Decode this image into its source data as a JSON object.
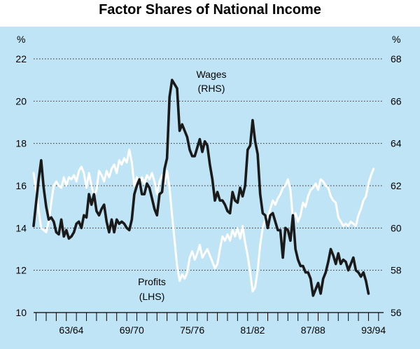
{
  "chart_data": {
    "type": "line",
    "title": "Factor Shares of National Income",
    "left_axis": {
      "unit": "%",
      "min": 10,
      "max": 22,
      "ticks": [
        10,
        12,
        14,
        16,
        18,
        20,
        22
      ]
    },
    "right_axis": {
      "unit": "%",
      "min": 56,
      "max": 68,
      "ticks": [
        56,
        58,
        60,
        62,
        64,
        66,
        68
      ]
    },
    "x_labels": [
      "63/64",
      "69/70",
      "75/76",
      "81/82",
      "87/88",
      "93/94"
    ],
    "x_range": [
      1959.75,
      1994.5
    ],
    "grid": "horizontal-dotted",
    "annotations": [
      {
        "text": "Wages",
        "series": "Wages (RHS)"
      },
      {
        "text": "(RHS)",
        "series": "Wages (RHS)"
      },
      {
        "text": "Profits",
        "series": "Profits (LHS)"
      },
      {
        "text": "(LHS)",
        "series": "Profits (LHS)"
      }
    ],
    "series": [
      {
        "axis": "left",
        "color": "#ffffff",
        "values": [
          [
            1959.75,
            16.6
          ],
          [
            1960.0,
            15.8
          ],
          [
            1960.25,
            14.8
          ],
          [
            1960.5,
            14.0
          ],
          [
            1960.75,
            13.9
          ],
          [
            1961.0,
            13.8
          ],
          [
            1961.25,
            14.3
          ],
          [
            1961.5,
            15.2
          ],
          [
            1961.75,
            16.0
          ],
          [
            1962.0,
            16.2
          ],
          [
            1962.25,
            16.0
          ],
          [
            1962.5,
            15.9
          ],
          [
            1962.75,
            16.4
          ],
          [
            1963.0,
            16.0
          ],
          [
            1963.25,
            16.4
          ],
          [
            1963.5,
            16.3
          ],
          [
            1963.75,
            16.5
          ],
          [
            1964.0,
            16.2
          ],
          [
            1964.25,
            16.7
          ],
          [
            1964.5,
            16.9
          ],
          [
            1964.75,
            16.6
          ],
          [
            1965.0,
            15.9
          ],
          [
            1965.25,
            16.6
          ],
          [
            1965.5,
            16.0
          ],
          [
            1965.75,
            15.5
          ],
          [
            1966.0,
            15.8
          ],
          [
            1966.25,
            16.7
          ],
          [
            1966.5,
            16.5
          ],
          [
            1966.75,
            16.2
          ],
          [
            1967.0,
            16.7
          ],
          [
            1967.25,
            16.4
          ],
          [
            1967.5,
            16.8
          ],
          [
            1967.75,
            17.0
          ],
          [
            1968.0,
            16.6
          ],
          [
            1968.25,
            17.2
          ],
          [
            1968.5,
            17.0
          ],
          [
            1968.75,
            17.3
          ],
          [
            1969.0,
            17.1
          ],
          [
            1969.25,
            17.7
          ],
          [
            1969.5,
            17.1
          ],
          [
            1969.75,
            16.0
          ],
          [
            1970.0,
            16.4
          ],
          [
            1970.25,
            16.0
          ],
          [
            1970.5,
            16.4
          ],
          [
            1970.75,
            16.1
          ],
          [
            1971.0,
            16.5
          ],
          [
            1971.25,
            16.3
          ],
          [
            1971.5,
            16.6
          ],
          [
            1971.75,
            16.2
          ],
          [
            1972.0,
            15.6
          ],
          [
            1972.25,
            16.2
          ],
          [
            1972.5,
            16.5
          ],
          [
            1972.75,
            16.1
          ],
          [
            1973.0,
            16.7
          ],
          [
            1973.25,
            15.9
          ],
          [
            1973.5,
            14.6
          ],
          [
            1973.75,
            13.4
          ],
          [
            1974.0,
            12.2
          ],
          [
            1974.25,
            11.5
          ],
          [
            1974.5,
            11.8
          ],
          [
            1974.75,
            11.6
          ],
          [
            1975.0,
            11.9
          ],
          [
            1975.25,
            12.6
          ],
          [
            1975.5,
            12.9
          ],
          [
            1975.75,
            12.5
          ],
          [
            1976.0,
            12.8
          ],
          [
            1976.25,
            13.2
          ],
          [
            1976.5,
            12.6
          ],
          [
            1976.75,
            12.8
          ],
          [
            1977.0,
            13.0
          ],
          [
            1977.25,
            12.7
          ],
          [
            1977.5,
            12.4
          ],
          [
            1977.75,
            12.1
          ],
          [
            1978.0,
            12.3
          ],
          [
            1978.25,
            13.0
          ],
          [
            1978.5,
            13.6
          ],
          [
            1978.75,
            13.4
          ],
          [
            1979.0,
            13.7
          ],
          [
            1979.25,
            13.4
          ],
          [
            1979.5,
            13.9
          ],
          [
            1979.75,
            13.6
          ],
          [
            1980.0,
            14.0
          ],
          [
            1980.25,
            13.5
          ],
          [
            1980.5,
            14.1
          ],
          [
            1980.75,
            13.3
          ],
          [
            1981.0,
            12.7
          ],
          [
            1981.25,
            11.9
          ],
          [
            1981.5,
            11.0
          ],
          [
            1981.75,
            11.2
          ],
          [
            1982.0,
            12.0
          ],
          [
            1982.25,
            13.2
          ],
          [
            1982.5,
            14.0
          ],
          [
            1982.75,
            14.4
          ],
          [
            1983.0,
            14.5
          ],
          [
            1983.25,
            14.9
          ],
          [
            1983.5,
            15.3
          ],
          [
            1983.75,
            15.1
          ],
          [
            1984.0,
            15.4
          ],
          [
            1984.25,
            15.6
          ],
          [
            1984.5,
            15.9
          ],
          [
            1984.75,
            16.0
          ],
          [
            1985.0,
            16.3
          ],
          [
            1985.25,
            15.8
          ],
          [
            1985.5,
            14.4
          ],
          [
            1985.75,
            14.7
          ],
          [
            1986.0,
            14.3
          ],
          [
            1986.25,
            14.6
          ],
          [
            1986.5,
            15.2
          ],
          [
            1986.75,
            15.0
          ],
          [
            1987.0,
            15.5
          ],
          [
            1987.25,
            15.8
          ],
          [
            1987.5,
            15.9
          ],
          [
            1987.75,
            16.1
          ],
          [
            1988.0,
            15.8
          ],
          [
            1988.25,
            16.3
          ],
          [
            1988.5,
            16.2
          ],
          [
            1988.75,
            16.0
          ],
          [
            1989.0,
            15.9
          ],
          [
            1989.25,
            15.5
          ],
          [
            1989.5,
            15.3
          ],
          [
            1989.75,
            15.2
          ],
          [
            1990.0,
            14.5
          ],
          [
            1990.25,
            14.3
          ],
          [
            1990.5,
            14.1
          ],
          [
            1990.75,
            14.2
          ],
          [
            1991.0,
            14.1
          ],
          [
            1991.25,
            14.3
          ],
          [
            1991.5,
            14.2
          ],
          [
            1991.75,
            14.1
          ],
          [
            1992.0,
            14.6
          ],
          [
            1992.25,
            14.9
          ],
          [
            1992.5,
            15.3
          ],
          [
            1992.75,
            15.5
          ],
          [
            1993.0,
            16.1
          ],
          [
            1993.25,
            16.5
          ],
          [
            1993.5,
            16.8
          ]
        ]
      },
      {
        "axis": "right",
        "color": "#1a1a1a",
        "values": [
          [
            1959.75,
            60.1
          ],
          [
            1960.0,
            61.2
          ],
          [
            1960.25,
            62.3
          ],
          [
            1960.5,
            63.2
          ],
          [
            1960.75,
            61.9
          ],
          [
            1961.0,
            61.0
          ],
          [
            1961.25,
            60.4
          ],
          [
            1961.5,
            60.5
          ],
          [
            1961.75,
            60.3
          ],
          [
            1962.0,
            59.8
          ],
          [
            1962.25,
            59.7
          ],
          [
            1962.5,
            60.4
          ],
          [
            1962.75,
            59.6
          ],
          [
            1963.0,
            59.9
          ],
          [
            1963.25,
            59.5
          ],
          [
            1963.5,
            59.6
          ],
          [
            1963.75,
            59.8
          ],
          [
            1964.0,
            60.2
          ],
          [
            1964.25,
            60.3
          ],
          [
            1964.5,
            60.0
          ],
          [
            1964.75,
            60.6
          ],
          [
            1965.0,
            60.5
          ],
          [
            1965.25,
            61.6
          ],
          [
            1965.5,
            61.1
          ],
          [
            1965.75,
            61.6
          ],
          [
            1966.0,
            60.8
          ],
          [
            1966.25,
            60.6
          ],
          [
            1966.5,
            60.9
          ],
          [
            1966.75,
            61.1
          ],
          [
            1967.0,
            60.3
          ],
          [
            1967.25,
            59.8
          ],
          [
            1967.5,
            60.4
          ],
          [
            1967.75,
            59.8
          ],
          [
            1968.0,
            60.4
          ],
          [
            1968.25,
            60.2
          ],
          [
            1968.5,
            60.3
          ],
          [
            1968.75,
            60.2
          ],
          [
            1969.0,
            60.0
          ],
          [
            1969.25,
            59.9
          ],
          [
            1969.5,
            60.4
          ],
          [
            1969.75,
            61.6
          ],
          [
            1970.0,
            62.0
          ],
          [
            1970.25,
            62.3
          ],
          [
            1970.5,
            61.6
          ],
          [
            1970.75,
            61.6
          ],
          [
            1971.0,
            62.1
          ],
          [
            1971.25,
            61.9
          ],
          [
            1971.5,
            61.4
          ],
          [
            1971.75,
            60.9
          ],
          [
            1972.0,
            60.6
          ],
          [
            1972.25,
            61.6
          ],
          [
            1972.5,
            61.7
          ],
          [
            1972.75,
            62.8
          ],
          [
            1973.0,
            63.3
          ],
          [
            1973.25,
            66.2
          ],
          [
            1973.5,
            67.0
          ],
          [
            1973.75,
            66.8
          ],
          [
            1974.0,
            66.6
          ],
          [
            1974.25,
            64.6
          ],
          [
            1974.5,
            64.9
          ],
          [
            1974.75,
            64.6
          ],
          [
            1975.0,
            64.3
          ],
          [
            1975.25,
            63.7
          ],
          [
            1975.5,
            63.4
          ],
          [
            1975.75,
            63.4
          ],
          [
            1976.0,
            63.8
          ],
          [
            1976.25,
            64.2
          ],
          [
            1976.5,
            63.6
          ],
          [
            1976.75,
            64.1
          ],
          [
            1977.0,
            63.9
          ],
          [
            1977.25,
            63.0
          ],
          [
            1977.5,
            62.3
          ],
          [
            1977.75,
            61.3
          ],
          [
            1978.0,
            61.7
          ],
          [
            1978.25,
            61.3
          ],
          [
            1978.5,
            61.3
          ],
          [
            1978.75,
            61.1
          ],
          [
            1979.0,
            60.8
          ],
          [
            1979.25,
            60.7
          ],
          [
            1979.5,
            61.7
          ],
          [
            1979.75,
            61.3
          ],
          [
            1980.0,
            61.2
          ],
          [
            1980.25,
            61.9
          ],
          [
            1980.5,
            61.5
          ],
          [
            1980.75,
            62.0
          ],
          [
            1981.0,
            63.7
          ],
          [
            1981.25,
            63.9
          ],
          [
            1981.5,
            65.1
          ],
          [
            1981.75,
            64.1
          ],
          [
            1982.0,
            63.5
          ],
          [
            1982.25,
            61.6
          ],
          [
            1982.5,
            60.7
          ],
          [
            1982.75,
            60.6
          ],
          [
            1983.0,
            60.0
          ],
          [
            1983.25,
            60.6
          ],
          [
            1983.5,
            60.7
          ],
          [
            1983.75,
            60.3
          ],
          [
            1984.0,
            59.9
          ],
          [
            1984.25,
            59.9
          ],
          [
            1984.5,
            58.6
          ],
          [
            1984.75,
            60.0
          ],
          [
            1985.0,
            59.9
          ],
          [
            1985.25,
            59.4
          ],
          [
            1985.5,
            60.6
          ],
          [
            1985.75,
            59.0
          ],
          [
            1986.0,
            58.5
          ],
          [
            1986.25,
            58.2
          ],
          [
            1986.5,
            58.2
          ],
          [
            1986.75,
            57.9
          ],
          [
            1987.0,
            57.9
          ],
          [
            1987.25,
            57.6
          ],
          [
            1987.5,
            56.8
          ],
          [
            1987.75,
            57.1
          ],
          [
            1988.0,
            57.4
          ],
          [
            1988.25,
            56.9
          ],
          [
            1988.5,
            57.6
          ],
          [
            1988.75,
            57.9
          ],
          [
            1989.0,
            58.4
          ],
          [
            1989.25,
            59.0
          ],
          [
            1989.5,
            58.7
          ],
          [
            1989.75,
            58.3
          ],
          [
            1990.0,
            58.8
          ],
          [
            1990.25,
            58.3
          ],
          [
            1990.5,
            58.5
          ],
          [
            1990.75,
            58.4
          ],
          [
            1991.0,
            58.0
          ],
          [
            1991.25,
            58.3
          ],
          [
            1991.5,
            58.6
          ],
          [
            1991.75,
            58.0
          ],
          [
            1992.0,
            57.9
          ],
          [
            1992.25,
            57.7
          ],
          [
            1992.5,
            57.9
          ],
          [
            1992.75,
            57.5
          ],
          [
            1993.0,
            56.9
          ]
        ]
      }
    ]
  }
}
